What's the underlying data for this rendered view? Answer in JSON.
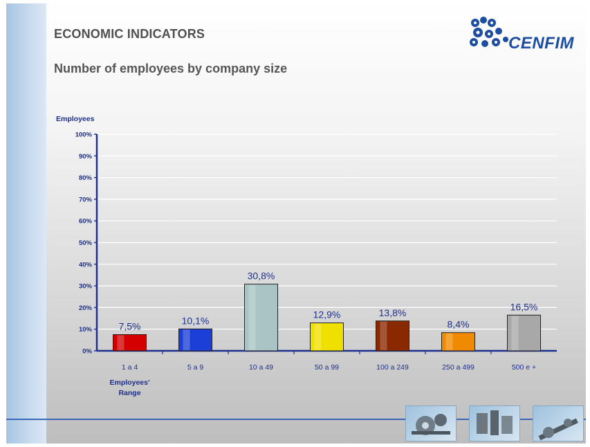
{
  "header": {
    "title": "ECONOMIC INDICATORS",
    "subtitle": "Number of employees by company size",
    "logo_text": "CENFIM"
  },
  "colors": {
    "axis": "#1d2f8c",
    "grid": "#ffffff",
    "label_text": "#1d2f8c",
    "bottom_line": "#3a66b8"
  },
  "icons": [
    "gears-photo",
    "machine-parts-photo",
    "shaft-photo"
  ],
  "chart_data": {
    "type": "bar",
    "ylabel": "Employees",
    "xlabel": "Employees' Range",
    "ylim": [
      0,
      100
    ],
    "grid": true,
    "yticks": [
      "0%",
      "10%",
      "20%",
      "30%",
      "40%",
      "50%",
      "60%",
      "70%",
      "80%",
      "90%",
      "100%"
    ],
    "categories": [
      "1 a 4",
      "5 a 9",
      "10 a 49",
      "50 a 99",
      "100 a 249",
      "250 a 499",
      "500 e +"
    ],
    "values": [
      7.5,
      10.1,
      30.8,
      12.9,
      13.8,
      8.4,
      16.5
    ],
    "data_labels": [
      "7,5%",
      "10,1%",
      "30,8%",
      "12,9%",
      "13,8%",
      "8,4%",
      "16,5%"
    ],
    "bar_colors": [
      "#d40000",
      "#1c3fd8",
      "#a8c4c4",
      "#f0e000",
      "#8a2800",
      "#f08a00",
      "#a8a8a8"
    ]
  }
}
